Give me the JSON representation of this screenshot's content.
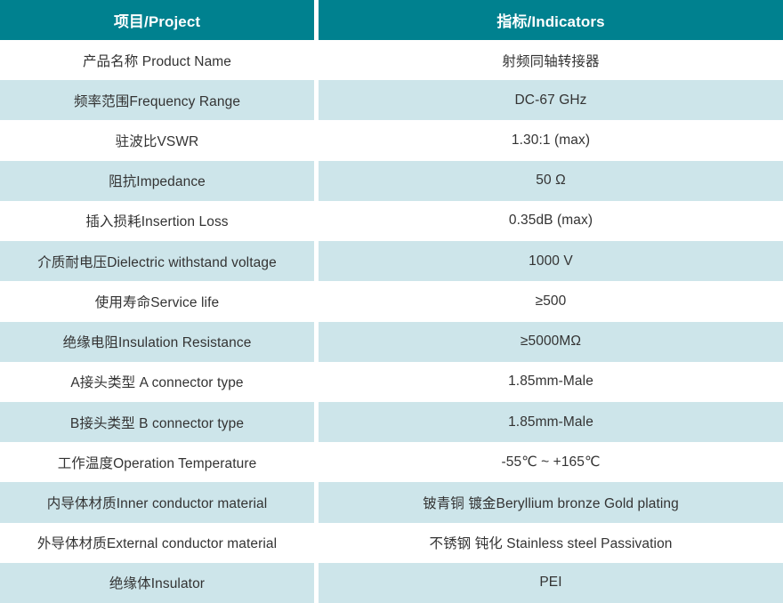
{
  "table": {
    "title": "RF coaxial adapter specification table",
    "columns": [
      {
        "key": "project",
        "label": "项目/Project"
      },
      {
        "key": "indicator",
        "label": "指标/Indicators"
      }
    ],
    "rows": [
      {
        "project": "产品名称 Product Name",
        "indicator": "射频同轴转接器"
      },
      {
        "project": "频率范围Frequency Range",
        "indicator": "DC-67 GHz"
      },
      {
        "project": "驻波比VSWR",
        "indicator": "1.30:1 (max)"
      },
      {
        "project": "阻抗Impedance",
        "indicator": "50 Ω"
      },
      {
        "project": "插入损耗Insertion Loss",
        "indicator": "0.35dB (max)"
      },
      {
        "project": "介质耐电压Dielectric withstand voltage",
        "indicator": "1000 V"
      },
      {
        "project": "使用寿命Service life",
        "indicator": "≥500"
      },
      {
        "project": "绝缘电阻Insulation Resistance",
        "indicator": "≥5000MΩ"
      },
      {
        "project": "A接头类型 A connector type",
        "indicator": "1.85mm-Male"
      },
      {
        "project": "B接头类型 B connector type",
        "indicator": "1.85mm-Male"
      },
      {
        "project": "工作温度Operation Temperature",
        "indicator": "-55℃ ~ +165℃"
      },
      {
        "project": "内导体材质Inner conductor material",
        "indicator": "铍青铜 镀金Beryllium bronze Gold plating"
      },
      {
        "project": "外导体材质External conductor material",
        "indicator": "不锈钢 钝化 Stainless steel Passivation"
      },
      {
        "project": "绝缘体Insulator",
        "indicator": "PEI"
      }
    ],
    "colors": {
      "header_bg": "#00818f",
      "header_text": "#ffffff",
      "alt_row_bg": "#cde5ea",
      "row_bg": "#ffffff",
      "body_text": "#333333",
      "divider": "#ffffff"
    }
  }
}
